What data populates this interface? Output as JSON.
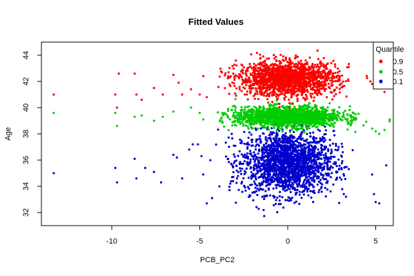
{
  "chart_data": {
    "type": "scatter",
    "title": "Fitted Values",
    "xlabel": "PCB_PC2",
    "ylabel": "Age",
    "xlim": [
      -14,
      6
    ],
    "ylim": [
      31,
      45
    ],
    "x_ticks": [
      -10,
      -5,
      0,
      5
    ],
    "y_ticks": [
      32,
      34,
      36,
      38,
      40,
      42,
      44
    ],
    "grid": false,
    "legend": {
      "title": "Quantile",
      "placement": "top-right",
      "entries": [
        {
          "label": "0.9",
          "color": "#ff0000"
        },
        {
          "label": "0.5",
          "color": "#00cd00"
        },
        {
          "label": "0.1",
          "color": "#0000cd"
        }
      ]
    },
    "series": [
      {
        "name": "0.9",
        "color": "#ff0000",
        "center": [
          0,
          42.2
        ],
        "spread": [
          1.4,
          0.65
        ],
        "count": 1700,
        "outliers": [
          [
            -13.3,
            41.0
          ],
          [
            -9.8,
            41.0
          ],
          [
            -9.7,
            40.0
          ],
          [
            -9.6,
            42.6
          ],
          [
            -8.7,
            42.6
          ],
          [
            -8.6,
            41.0
          ],
          [
            -8.3,
            40.6
          ],
          [
            -7.6,
            41.5
          ],
          [
            -7.1,
            41.0
          ],
          [
            -6.5,
            42.5
          ],
          [
            -6.2,
            41.9
          ],
          [
            -6.0,
            41.0
          ],
          [
            -5.5,
            41.4
          ],
          [
            -5.0,
            41.0
          ],
          [
            -4.8,
            42.4
          ],
          [
            -4.6,
            40.8
          ],
          [
            4.7,
            42.0
          ],
          [
            4.8,
            41.8
          ],
          [
            5.0,
            42.6
          ],
          [
            5.1,
            42.3
          ],
          [
            5.5,
            41.2
          ],
          [
            5.8,
            41.6
          ]
        ]
      },
      {
        "name": "0.5",
        "color": "#00cd00",
        "center": [
          0,
          39.3
        ],
        "spread": [
          1.5,
          0.38
        ],
        "count": 1700,
        "outliers": [
          [
            -13.3,
            39.6
          ],
          [
            -9.8,
            39.6
          ],
          [
            -9.7,
            38.6
          ],
          [
            -8.7,
            39.3
          ],
          [
            -8.3,
            39.4
          ],
          [
            -7.6,
            39.0
          ],
          [
            -7.1,
            39.3
          ],
          [
            -6.5,
            39.7
          ],
          [
            -5.5,
            40.0
          ],
          [
            -5.0,
            39.6
          ],
          [
            -4.8,
            39.1
          ],
          [
            4.8,
            38.4
          ],
          [
            5.0,
            38.2
          ],
          [
            5.2,
            38.0
          ],
          [
            5.5,
            38.3
          ],
          [
            5.8,
            39.1
          ]
        ]
      },
      {
        "name": "0.1",
        "color": "#0000cd",
        "center": [
          0,
          35.8
        ],
        "spread": [
          1.3,
          1.2
        ],
        "count": 2000,
        "outliers": [
          [
            -13.3,
            35.0
          ],
          [
            -9.8,
            35.4
          ],
          [
            -9.7,
            34.3
          ],
          [
            -8.7,
            36.1
          ],
          [
            -8.6,
            34.6
          ],
          [
            -8.1,
            35.4
          ],
          [
            -7.6,
            35.1
          ],
          [
            -7.2,
            34.3
          ],
          [
            -6.5,
            36.4
          ],
          [
            -6.3,
            36.2
          ],
          [
            -6.0,
            34.6
          ],
          [
            -5.6,
            36.8
          ],
          [
            -5.4,
            37.2
          ],
          [
            -5.1,
            37.2
          ],
          [
            -4.9,
            36.3
          ],
          [
            -4.8,
            34.9
          ],
          [
            -4.6,
            32.7
          ],
          [
            -4.3,
            33.1
          ],
          [
            4.8,
            34.9
          ],
          [
            4.9,
            33.4
          ],
          [
            5.0,
            32.8
          ],
          [
            5.2,
            32.7
          ],
          [
            5.6,
            35.6
          ]
        ]
      }
    ]
  }
}
